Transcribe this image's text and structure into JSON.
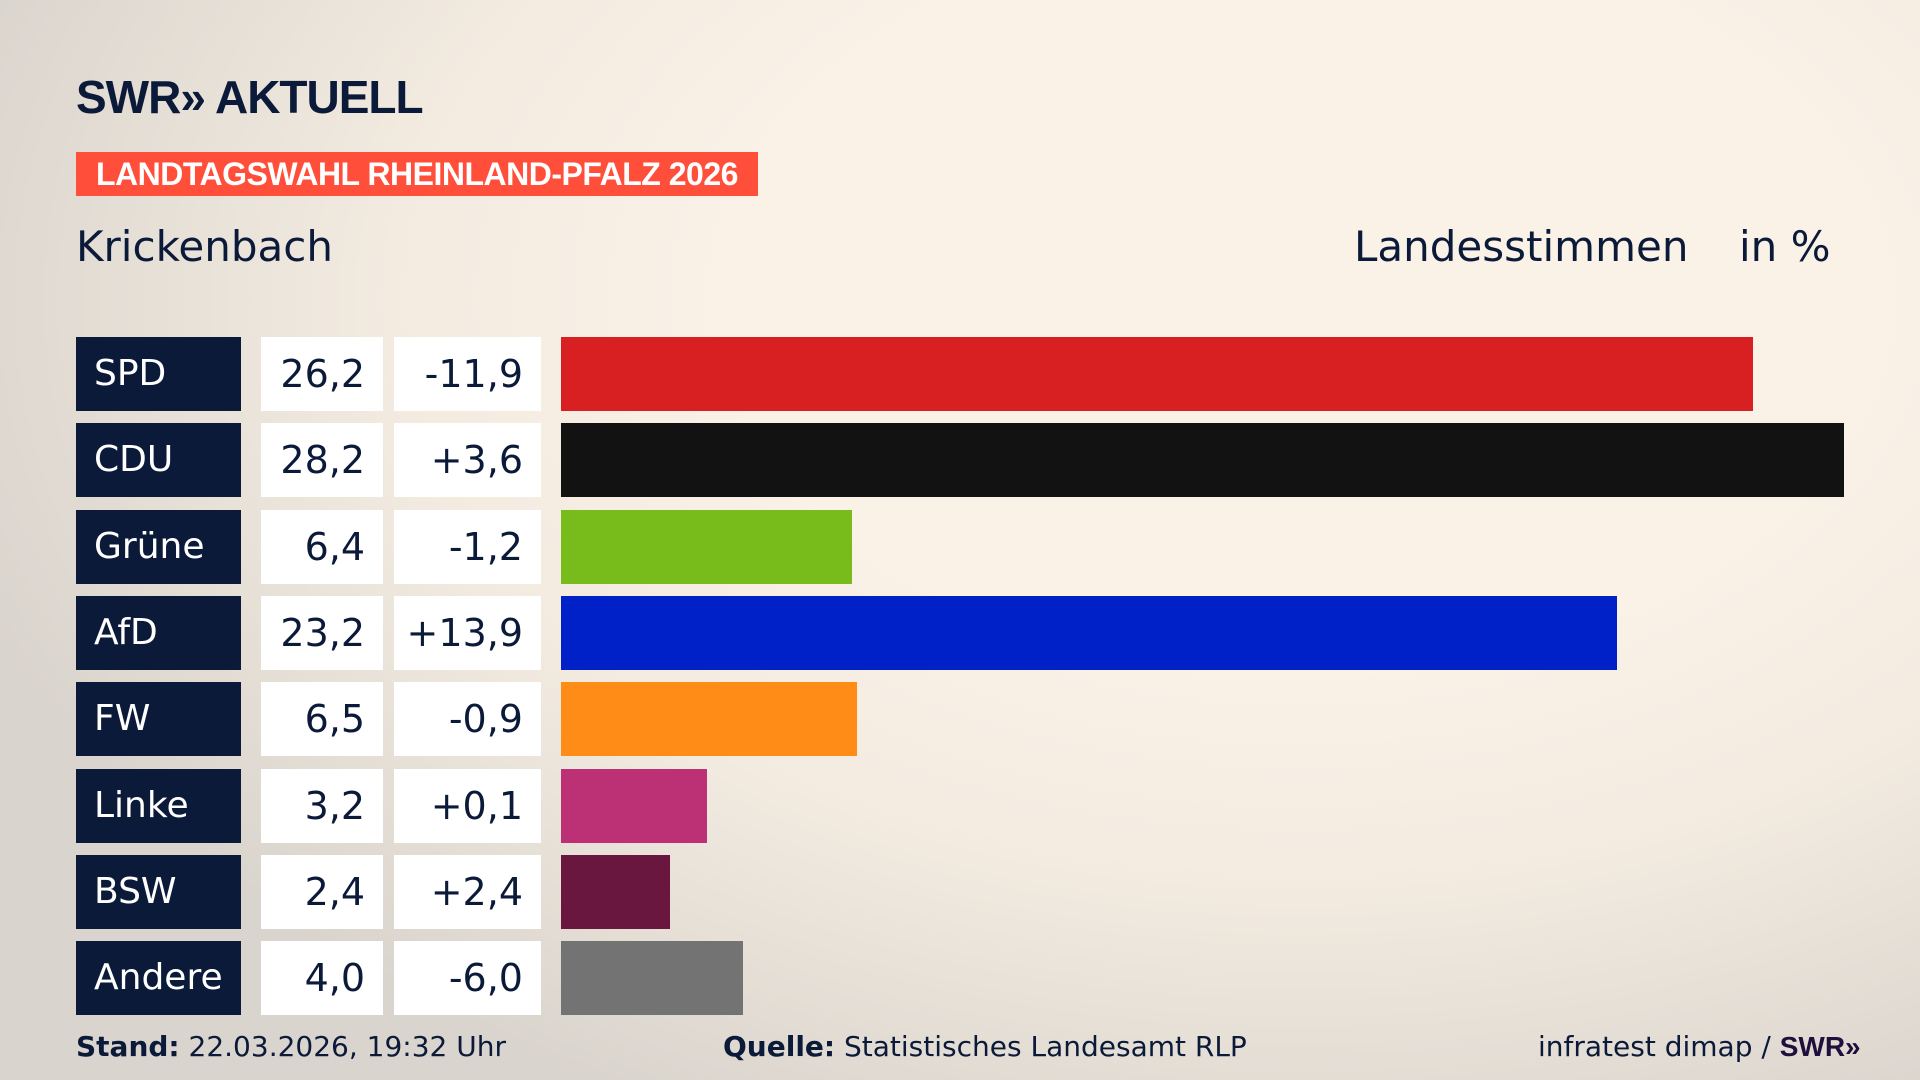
{
  "header": {
    "logo": "SWR» AKTUELL",
    "banner": "LANDTAGSWAHL RHEINLAND-PFALZ 2026",
    "place": "Krickenbach",
    "vote_type": "Landesstimmen",
    "unit": "in %"
  },
  "chart_data": {
    "type": "bar",
    "orientation": "horizontal",
    "categories": [
      "SPD",
      "CDU",
      "Grüne",
      "AfD",
      "FW",
      "Linke",
      "BSW",
      "Andere"
    ],
    "values": [
      26.2,
      28.2,
      6.4,
      23.2,
      6.5,
      3.2,
      2.4,
      4.0
    ],
    "value_labels": [
      "26,2",
      "28,2",
      "6,4",
      "23,2",
      "6,5",
      "3,2",
      "2,4",
      "4,0"
    ],
    "diff_labels": [
      "-11,9",
      "+3,6",
      "-1,2",
      "+13,9",
      "-0,9",
      "+0,1",
      "+2,4",
      "-6,0"
    ],
    "colors": [
      "#d81f22",
      "#121212",
      "#78bc1b",
      "#0021c8",
      "#ff8c17",
      "#bc3075",
      "#6a173f",
      "#737373"
    ],
    "xlim": [
      0,
      28.2
    ],
    "grid": false
  },
  "footer": {
    "stand_label": "Stand:",
    "stand_value": "22.03.2026, 19:32 Uhr",
    "source_label": "Quelle:",
    "source_value": "Statistisches Landesamt RLP",
    "credit": "infratest dimap /",
    "credit_logo": "SWR»"
  }
}
